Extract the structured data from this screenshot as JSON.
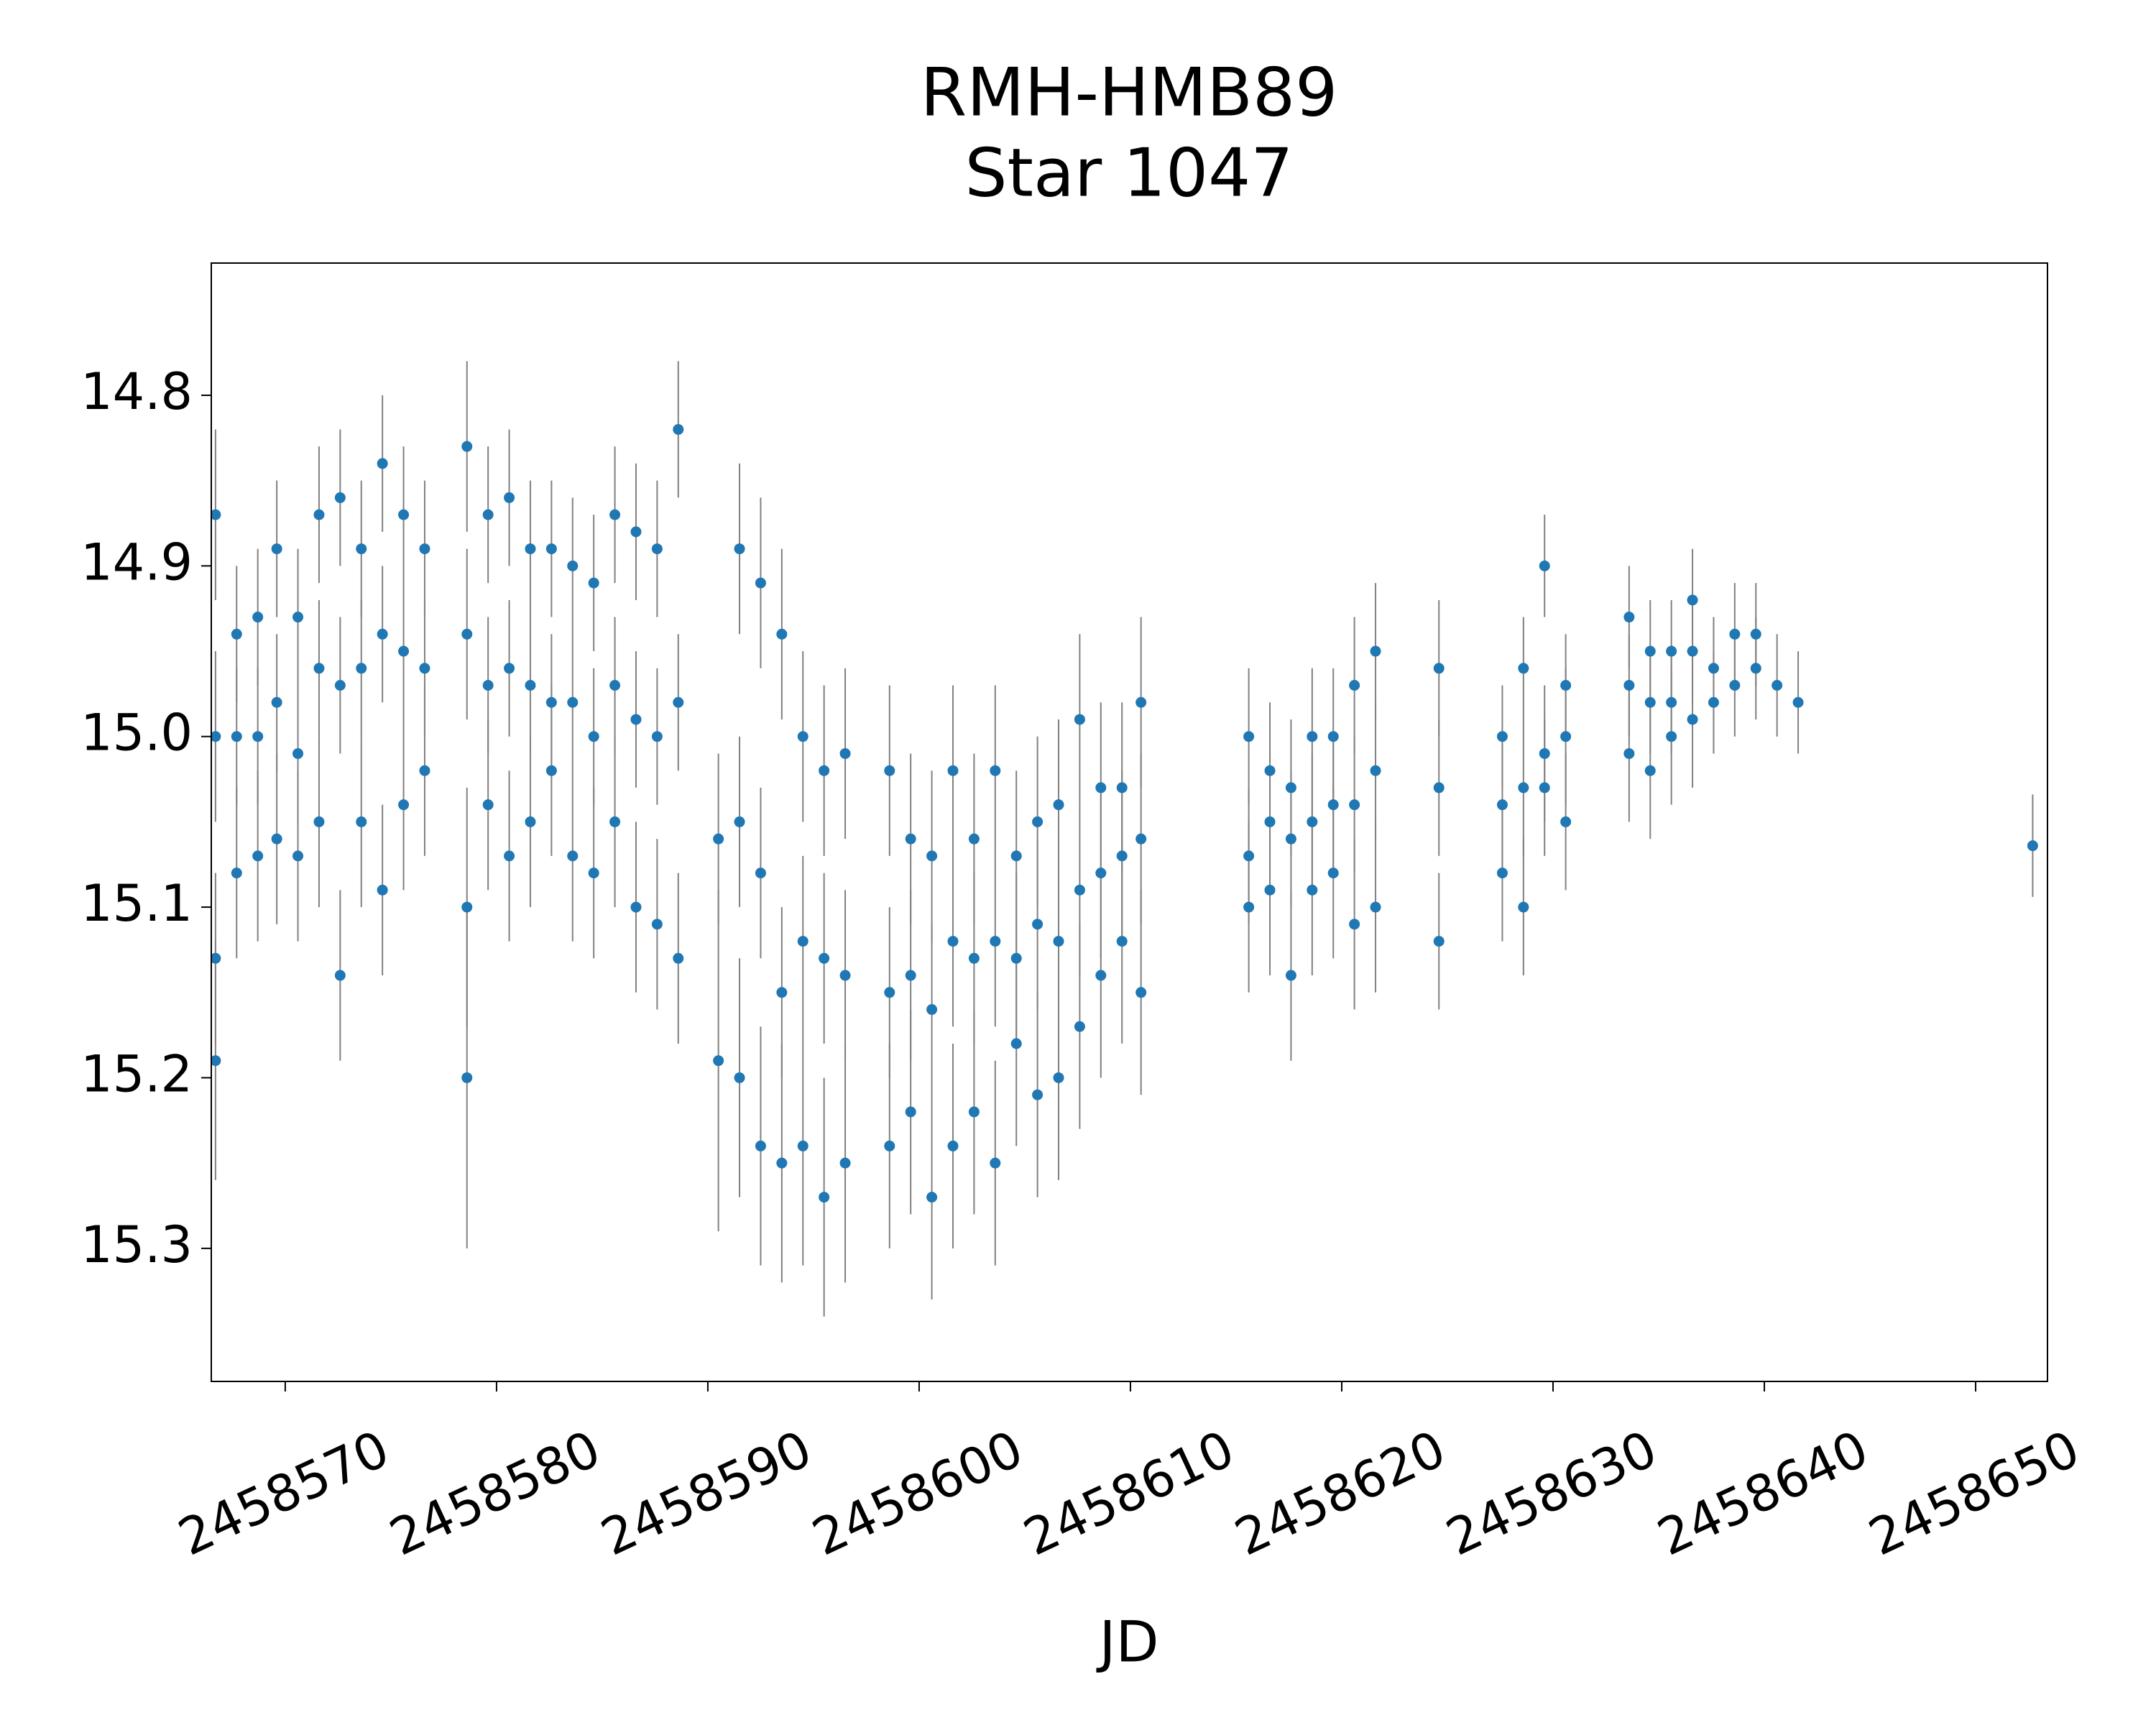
{
  "chart_data": {
    "type": "scatter",
    "title": "RMH-HMB89",
    "subtitle": "Star 1047",
    "x_label": "JD",
    "color": "#1f77b4",
    "errorbar_color": "#808080",
    "y_inverted": true,
    "xlim": [
      2458566.5,
      2458653.4
    ],
    "ylim": [
      14.7225,
      15.378
    ],
    "xticks": [
      2458570,
      2458580,
      2458590,
      2458600,
      2458610,
      2458620,
      2458630,
      2458640,
      2458650
    ],
    "yticks": [
      14.8,
      14.9,
      {
        "value": 15,
        "label": "15.0"
      },
      15.1,
      15.2,
      15.3
    ],
    "x": [
      2458566.7,
      2458566.7,
      2458566.7,
      2458566.7,
      2458567.7,
      2458567.7,
      2458567.7,
      2458568.7,
      2458568.7,
      2458568.7,
      2458569.6,
      2458569.6,
      2458569.6,
      2458570.6,
      2458570.6,
      2458570.6,
      2458571.6,
      2458571.6,
      2458571.6,
      2458572.6,
      2458572.6,
      2458572.6,
      2458573.6,
      2458573.6,
      2458573.6,
      2458574.6,
      2458574.6,
      2458574.6,
      2458575.6,
      2458575.6,
      2458575.6,
      2458576.6,
      2458576.6,
      2458576.6,
      2458578.6,
      2458578.6,
      2458578.6,
      2458578.6,
      2458579.6,
      2458579.6,
      2458579.6,
      2458580.6,
      2458580.6,
      2458580.6,
      2458581.6,
      2458581.6,
      2458581.6,
      2458582.6,
      2458582.6,
      2458582.6,
      2458583.6,
      2458583.6,
      2458583.6,
      2458584.6,
      2458584.6,
      2458584.6,
      2458585.6,
      2458585.6,
      2458585.6,
      2458586.6,
      2458586.6,
      2458586.6,
      2458587.6,
      2458587.6,
      2458587.6,
      2458588.6,
      2458588.6,
      2458588.6,
      2458590.5,
      2458590.5,
      2458591.5,
      2458591.5,
      2458591.5,
      2458592.5,
      2458592.5,
      2458592.5,
      2458593.5,
      2458593.5,
      2458593.5,
      2458594.5,
      2458594.5,
      2458594.5,
      2458595.5,
      2458595.5,
      2458595.5,
      2458596.5,
      2458596.5,
      2458596.5,
      2458598.6,
      2458598.6,
      2458598.6,
      2458599.6,
      2458599.6,
      2458599.6,
      2458600.6,
      2458600.6,
      2458600.6,
      2458601.6,
      2458601.6,
      2458601.6,
      2458602.6,
      2458602.6,
      2458602.6,
      2458603.6,
      2458603.6,
      2458603.6,
      2458604.6,
      2458604.6,
      2458604.6,
      2458605.6,
      2458605.6,
      2458605.6,
      2458606.6,
      2458606.6,
      2458606.6,
      2458607.6,
      2458607.6,
      2458607.6,
      2458608.6,
      2458608.6,
      2458608.6,
      2458609.6,
      2458609.6,
      2458609.6,
      2458610.5,
      2458610.5,
      2458610.5,
      2458615.6,
      2458615.6,
      2458615.6,
      2458616.6,
      2458616.6,
      2458616.6,
      2458617.6,
      2458617.6,
      2458617.6,
      2458618.6,
      2458618.6,
      2458618.6,
      2458619.6,
      2458619.6,
      2458619.6,
      2458620.6,
      2458620.6,
      2458620.6,
      2458621.6,
      2458621.6,
      2458621.6,
      2458624.6,
      2458624.6,
      2458624.6,
      2458627.6,
      2458627.6,
      2458627.6,
      2458628.6,
      2458628.6,
      2458628.6,
      2458629.6,
      2458629.6,
      2458629.6,
      2458630.6,
      2458630.6,
      2458630.6,
      2458633.6,
      2458633.6,
      2458633.6,
      2458634.6,
      2458634.6,
      2458634.6,
      2458635.6,
      2458635.6,
      2458635.6,
      2458636.6,
      2458636.6,
      2458636.6,
      2458637.6,
      2458637.6,
      2458638.6,
      2458638.6,
      2458639.6,
      2458639.6,
      2458640.6,
      2458641.6,
      2458652.7
    ],
    "values": [
      14.87,
      15.0,
      15.19,
      15.13,
      14.94,
      15.0,
      15.08,
      14.93,
      15.0,
      15.07,
      14.89,
      14.98,
      15.06,
      14.93,
      15.01,
      15.07,
      14.87,
      14.96,
      15.05,
      14.86,
      14.97,
      15.14,
      14.89,
      14.96,
      15.05,
      14.84,
      14.94,
      15.09,
      14.87,
      14.95,
      15.04,
      14.89,
      14.96,
      15.02,
      14.83,
      14.94,
      15.1,
      15.2,
      14.87,
      14.97,
      15.04,
      14.86,
      14.96,
      15.07,
      14.89,
      14.97,
      15.05,
      14.89,
      14.98,
      15.02,
      14.9,
      14.98,
      15.07,
      14.91,
      15.0,
      15.08,
      14.87,
      14.97,
      15.05,
      14.88,
      14.99,
      15.1,
      14.89,
      15.0,
      15.11,
      14.82,
      14.98,
      15.13,
      15.06,
      15.19,
      14.89,
      15.05,
      15.2,
      14.91,
      15.08,
      15.24,
      14.94,
      15.15,
      15.25,
      15.0,
      15.12,
      15.24,
      15.02,
      15.13,
      15.27,
      15.01,
      15.14,
      15.25,
      15.02,
      15.15,
      15.24,
      15.06,
      15.14,
      15.22,
      15.07,
      15.16,
      15.27,
      15.02,
      15.12,
      15.24,
      15.06,
      15.13,
      15.22,
      15.02,
      15.12,
      15.25,
      15.07,
      15.13,
      15.18,
      15.05,
      15.11,
      15.21,
      15.04,
      15.12,
      15.2,
      14.99,
      15.09,
      15.17,
      15.03,
      15.08,
      15.14,
      15.03,
      15.07,
      15.12,
      14.98,
      15.06,
      15.15,
      15.0,
      15.07,
      15.1,
      15.02,
      15.05,
      15.09,
      15.03,
      15.06,
      15.14,
      15.0,
      15.05,
      15.09,
      15.0,
      15.04,
      15.08,
      14.97,
      15.04,
      15.11,
      14.95,
      15.02,
      15.1,
      14.96,
      15.03,
      15.12,
      15.0,
      15.04,
      15.08,
      14.96,
      15.03,
      15.1,
      14.9,
      15.01,
      15.03,
      14.97,
      15.0,
      15.05,
      14.93,
      14.97,
      15.01,
      14.95,
      14.98,
      15.02,
      14.95,
      14.98,
      15.0,
      14.92,
      14.95,
      14.99,
      14.96,
      14.98,
      14.94,
      14.97,
      14.94,
      14.96,
      14.97,
      14.98,
      15.064
    ],
    "errors": [
      0.05,
      0.05,
      0.07,
      0.05,
      0.04,
      0.04,
      0.05,
      0.04,
      0.04,
      0.05,
      0.04,
      0.04,
      0.05,
      0.04,
      0.04,
      0.05,
      0.04,
      0.04,
      0.05,
      0.04,
      0.04,
      0.05,
      0.04,
      0.04,
      0.05,
      0.04,
      0.04,
      0.05,
      0.04,
      0.04,
      0.05,
      0.04,
      0.04,
      0.05,
      0.05,
      0.05,
      0.07,
      0.1,
      0.04,
      0.04,
      0.05,
      0.04,
      0.04,
      0.05,
      0.04,
      0.04,
      0.05,
      0.04,
      0.04,
      0.05,
      0.04,
      0.04,
      0.05,
      0.04,
      0.04,
      0.05,
      0.04,
      0.04,
      0.05,
      0.04,
      0.04,
      0.05,
      0.04,
      0.04,
      0.05,
      0.04,
      0.04,
      0.05,
      0.05,
      0.1,
      0.05,
      0.05,
      0.07,
      0.05,
      0.05,
      0.07,
      0.05,
      0.05,
      0.07,
      0.05,
      0.05,
      0.07,
      0.05,
      0.05,
      0.07,
      0.05,
      0.05,
      0.07,
      0.05,
      0.05,
      0.06,
      0.05,
      0.05,
      0.06,
      0.05,
      0.05,
      0.06,
      0.05,
      0.05,
      0.06,
      0.05,
      0.05,
      0.06,
      0.05,
      0.05,
      0.06,
      0.05,
      0.05,
      0.06,
      0.05,
      0.05,
      0.06,
      0.05,
      0.05,
      0.06,
      0.05,
      0.05,
      0.06,
      0.05,
      0.05,
      0.06,
      0.05,
      0.05,
      0.06,
      0.05,
      0.05,
      0.06,
      0.04,
      0.04,
      0.05,
      0.04,
      0.04,
      0.05,
      0.04,
      0.04,
      0.05,
      0.04,
      0.04,
      0.05,
      0.04,
      0.04,
      0.05,
      0.04,
      0.04,
      0.05,
      0.04,
      0.04,
      0.05,
      0.04,
      0.04,
      0.04,
      0.03,
      0.04,
      0.04,
      0.03,
      0.04,
      0.04,
      0.03,
      0.04,
      0.04,
      0.03,
      0.04,
      0.04,
      0.03,
      0.03,
      0.04,
      0.03,
      0.03,
      0.04,
      0.03,
      0.03,
      0.04,
      0.03,
      0.03,
      0.04,
      0.03,
      0.03,
      0.03,
      0.03,
      0.03,
      0.03,
      0.03,
      0.03,
      0.03
    ]
  }
}
